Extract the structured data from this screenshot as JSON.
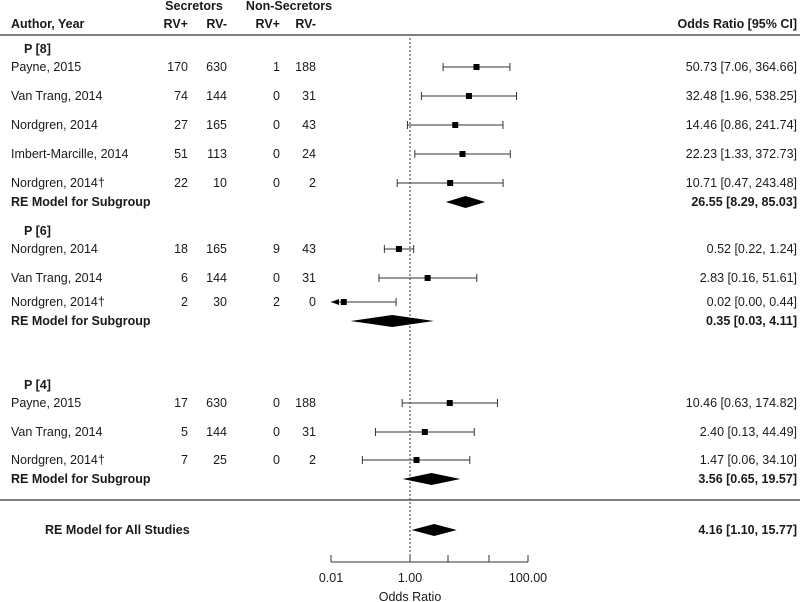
{
  "chart_data": {
    "type": "forest",
    "xlabel": "Odds Ratio",
    "xscale": "log",
    "reference_line": 1,
    "x_tick_labels": [
      "0.01",
      "1.00",
      "100.00"
    ],
    "headers": {
      "author": "Author, Year",
      "secretors": "Secretors",
      "non_secretors": "Non-Secretors",
      "rv_pos": "RV+",
      "rv_neg": "RV-",
      "effect": "Odds Ratio [95% CI]"
    },
    "subgroups": [
      {
        "label": "P [8]",
        "studies": [
          {
            "author": "Payne, 2015",
            "s_pos": "170",
            "s_neg": "630",
            "n_pos": "1",
            "n_neg": "188",
            "or": 50.73,
            "lo": 7.06,
            "hi": 364.66,
            "text": "50.73 [7.06, 364.66]"
          },
          {
            "author": "Van Trang, 2014",
            "s_pos": "74",
            "s_neg": "144",
            "n_pos": "0",
            "n_neg": "31",
            "or": 32.48,
            "lo": 1.96,
            "hi": 538.25,
            "text": "32.48 [1.96, 538.25]"
          },
          {
            "author": "Nordgren, 2014",
            "s_pos": "27",
            "s_neg": "165",
            "n_pos": "0",
            "n_neg": "43",
            "or": 14.46,
            "lo": 0.86,
            "hi": 241.74,
            "text": "14.46 [0.86, 241.74]"
          },
          {
            "author": "Imbert-Marcille, 2014",
            "s_pos": "51",
            "s_neg": "113",
            "n_pos": "0",
            "n_neg": "24",
            "or": 22.23,
            "lo": 1.33,
            "hi": 372.73,
            "text": "22.23 [1.33, 372.73]"
          },
          {
            "author": "Nordgren, 2014†",
            "s_pos": "22",
            "s_neg": "10",
            "n_pos": "0",
            "n_neg": "2",
            "or": 10.71,
            "lo": 0.47,
            "hi": 243.48,
            "text": "10.71 [0.47, 243.48]"
          }
        ],
        "summary": {
          "label": "RE Model for Subgroup",
          "or": 26.55,
          "lo": 8.29,
          "hi": 85.03,
          "text": "26.55 [8.29, 85.03]"
        }
      },
      {
        "label": "P [6]",
        "studies": [
          {
            "author": "Nordgren, 2014",
            "s_pos": "18",
            "s_neg": "165",
            "n_pos": "9",
            "n_neg": "43",
            "or": 0.52,
            "lo": 0.22,
            "hi": 1.24,
            "text": "0.52 [0.22, 1.24]"
          },
          {
            "author": "Van Trang, 2014",
            "s_pos": "6",
            "s_neg": "144",
            "n_pos": "0",
            "n_neg": "31",
            "or": 2.83,
            "lo": 0.16,
            "hi": 51.61,
            "text": "2.83 [0.16, 51.61]"
          },
          {
            "author": "Nordgren, 2014†",
            "s_pos": "2",
            "s_neg": "30",
            "n_pos": "2",
            "n_neg": "0",
            "or": 0.02,
            "lo": 0.0,
            "hi": 0.44,
            "text": "0.02 [0.00, 0.44]"
          }
        ],
        "summary": {
          "label": "RE Model for Subgroup",
          "or": 0.35,
          "lo": 0.03,
          "hi": 4.11,
          "text": "0.35 [0.03, 4.11]"
        }
      },
      {
        "label": "P [4]",
        "studies": [
          {
            "author": "Payne, 2015",
            "s_pos": "17",
            "s_neg": "630",
            "n_pos": "0",
            "n_neg": "188",
            "or": 10.46,
            "lo": 0.63,
            "hi": 174.82,
            "text": "10.46 [0.63, 174.82]"
          },
          {
            "author": "Van Trang, 2014",
            "s_pos": "5",
            "s_neg": "144",
            "n_pos": "0",
            "n_neg": "31",
            "or": 2.4,
            "lo": 0.13,
            "hi": 44.49,
            "text": "2.40 [0.13, 44.49]"
          },
          {
            "author": "Nordgren, 2014†",
            "s_pos": "7",
            "s_neg": "25",
            "n_pos": "0",
            "n_neg": "2",
            "or": 1.47,
            "lo": 0.06,
            "hi": 34.1,
            "text": "1.47 [0.06, 34.10]"
          }
        ],
        "summary": {
          "label": "RE Model for Subgroup",
          "or": 3.56,
          "lo": 0.65,
          "hi": 19.57,
          "text": "3.56 [0.65, 19.57]"
        }
      }
    ],
    "overall": {
      "label": "RE Model for All Studies",
      "or": 4.16,
      "lo": 1.1,
      "hi": 15.77,
      "text": "4.16 [1.10, 15.77]"
    }
  }
}
